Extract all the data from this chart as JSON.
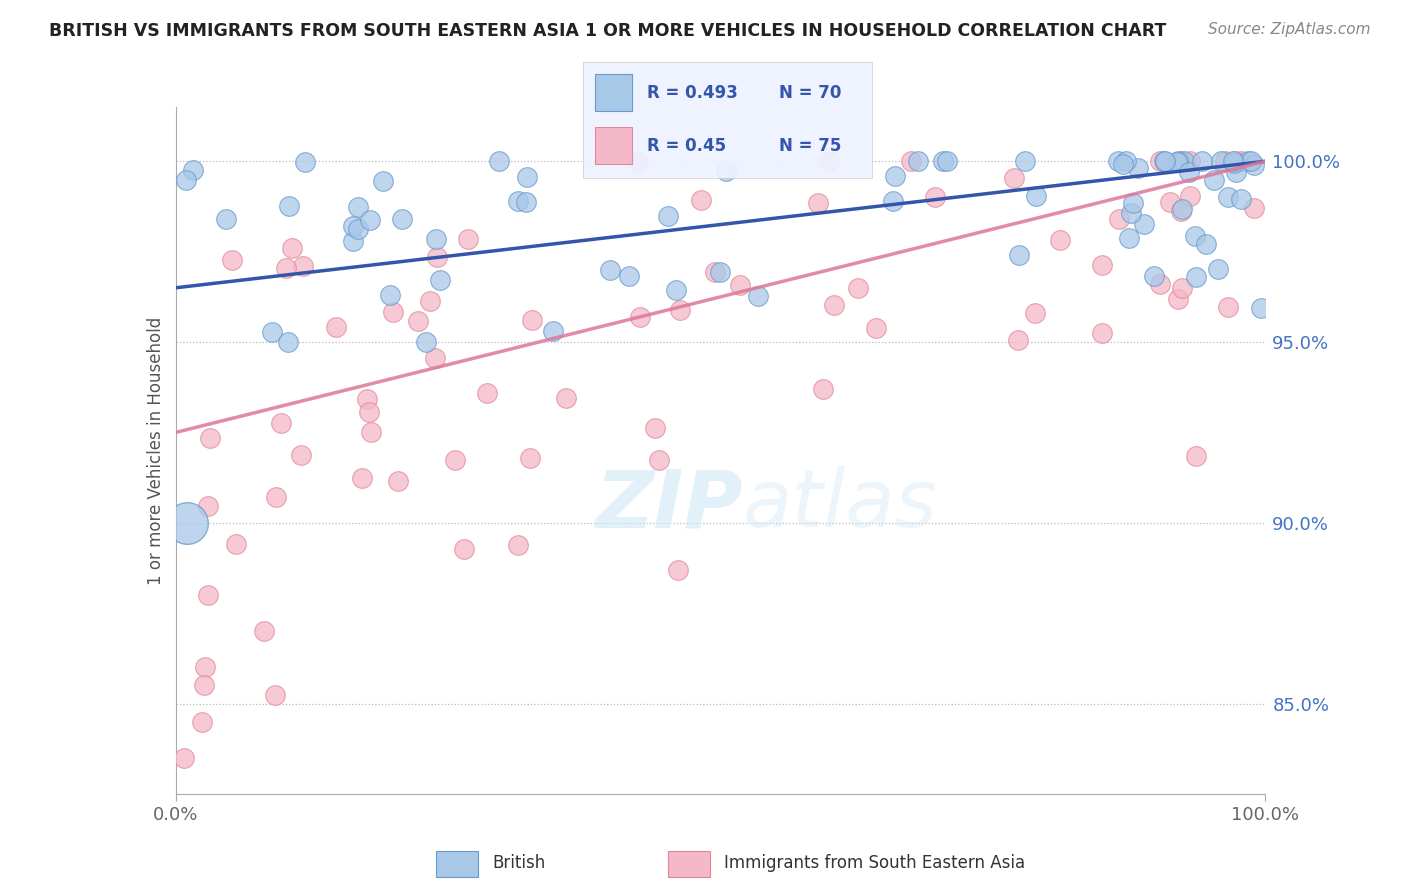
{
  "title": "BRITISH VS IMMIGRANTS FROM SOUTH EASTERN ASIA 1 OR MORE VEHICLES IN HOUSEHOLD CORRELATION CHART",
  "source_text": "Source: ZipAtlas.com",
  "ylabel": "1 or more Vehicles in Household",
  "xlim": [
    0,
    100
  ],
  "ylim": [
    82.5,
    101.5
  ],
  "ytick_vals": [
    85,
    90,
    95,
    100
  ],
  "ytick_labels": [
    "85.0%",
    "90.0%",
    "95.0%",
    "100.0%"
  ],
  "xtick_vals": [
    0,
    100
  ],
  "xtick_labels": [
    "0.0%",
    "100.0%"
  ],
  "british_color": "#A8C8E8",
  "british_edge_color": "#6699CC",
  "immigrant_color": "#F4B8C8",
  "immigrant_edge_color": "#E08898",
  "british_line_color": "#3355AA",
  "immigrant_line_color": "#DD7799",
  "legend_text_color": "#3355AA",
  "legend_bg_color": "#EEF2FF",
  "R_british": 0.493,
  "N_british": 70,
  "R_immigrant": 0.45,
  "N_immigrant": 75,
  "british_line_y0": 96.5,
  "british_line_y100": 100.0,
  "immigrant_line_y0": 92.5,
  "immigrant_line_y100": 100.0,
  "watermark_color": "#D0E8F5"
}
